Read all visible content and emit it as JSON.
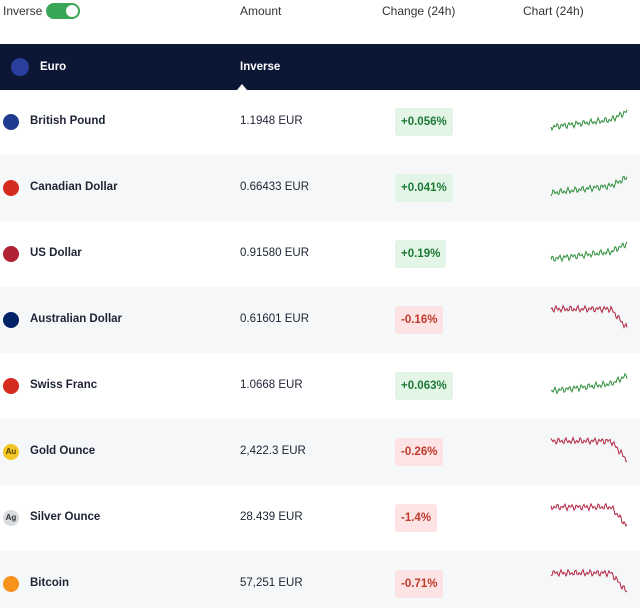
{
  "header": {
    "toggle_label": "Inverse",
    "columns": [
      "Amount",
      "Change (24h)",
      "Chart (24h)"
    ]
  },
  "base": {
    "name": "Euro",
    "column": "Inverse"
  },
  "rows": [
    {
      "name": "British Pound",
      "amount": "1.1948 EUR",
      "change": "+0.056%"
    },
    {
      "name": "Canadian Dollar",
      "amount": "0.66433 EUR",
      "change": "+0.041%"
    },
    {
      "name": "US Dollar",
      "amount": "0.91580 EUR",
      "change": "+0.19%"
    },
    {
      "name": "Australian Dollar",
      "amount": "0.61601 EUR",
      "change": "-0.16%"
    },
    {
      "name": "Swiss Franc",
      "amount": "1.0668 EUR",
      "change": "+0.063%"
    },
    {
      "name": "Gold Ounce",
      "icon_text": "Au",
      "amount": "2,422.3 EUR",
      "change": "-0.26%"
    },
    {
      "name": "Silver Ounce",
      "icon_text": "Ag",
      "amount": "28.439 EUR",
      "change": "-1.4%"
    },
    {
      "name": "Bitcoin",
      "amount": "57,251 EUR",
      "change": "-0.71%"
    }
  ]
}
